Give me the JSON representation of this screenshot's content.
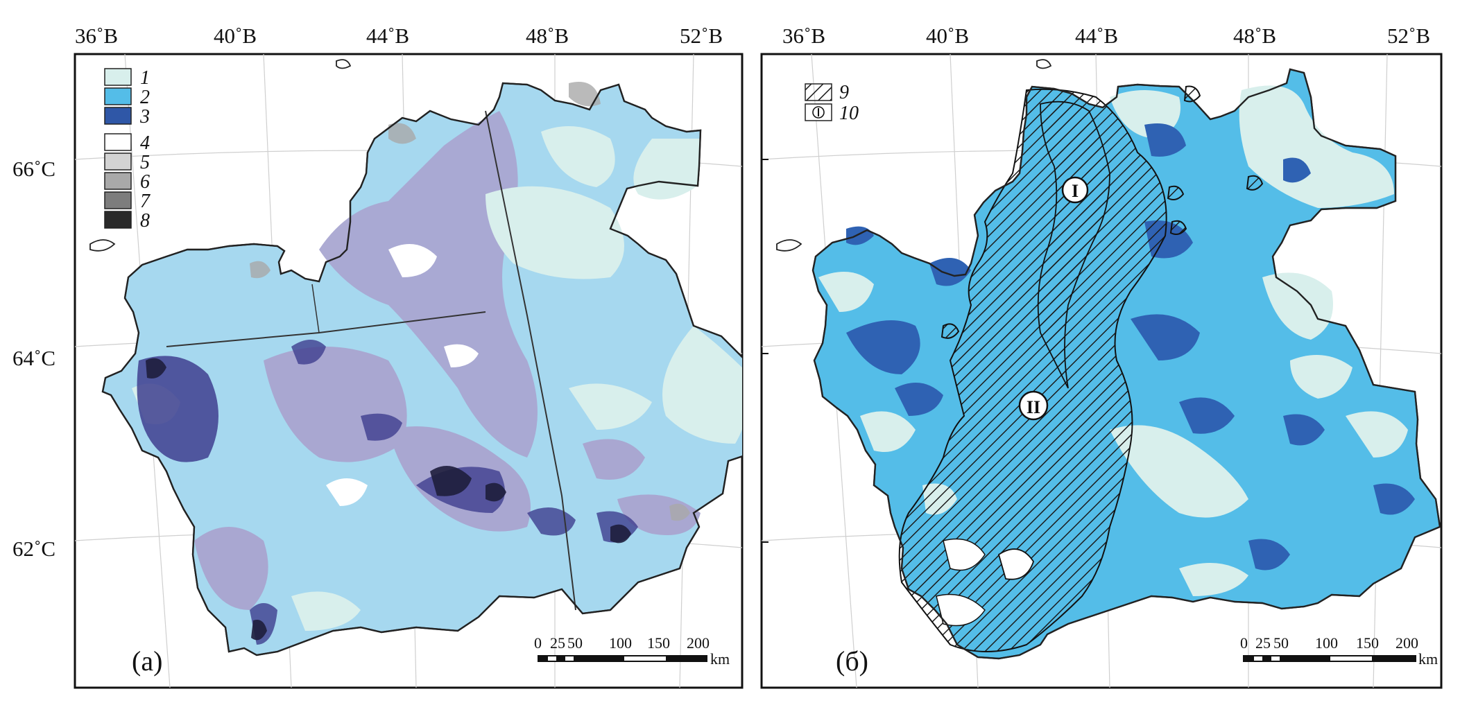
{
  "figure": {
    "panels": [
      {
        "id": "a",
        "label": "(а)",
        "top_ticks": [
          "36˚B",
          "40˚B",
          "44˚B",
          "48˚B",
          "52˚B"
        ],
        "left_ticks": [
          "66˚C",
          "64˚C",
          "62˚C"
        ],
        "legend": [
          {
            "num": "1",
            "color": "#d8efec"
          },
          {
            "num": "2",
            "color": "#9fd6ee"
          },
          {
            "num": "3",
            "color": "#2f57a7"
          },
          {
            "num": "4",
            "color": "#ffffff"
          },
          {
            "num": "5",
            "color": "#d3d3d3"
          },
          {
            "num": "6",
            "color": "#a9a9a9"
          },
          {
            "num": "7",
            "color": "#7d7d7d"
          },
          {
            "num": "8",
            "color": "#2a2a2a"
          }
        ],
        "scale": {
          "ticks": [
            "0",
            "25",
            "50",
            "100",
            "150",
            "200"
          ],
          "unit": "km"
        }
      },
      {
        "id": "b",
        "label": "(б)",
        "top_ticks": [
          "36˚B",
          "40˚B",
          "44˚B",
          "48˚B",
          "52˚B"
        ],
        "legend": [
          {
            "num": "9",
            "pattern": "hatch"
          },
          {
            "num": "10",
            "pattern": "circle-I"
          }
        ],
        "regions": [
          "I",
          "II"
        ],
        "scale": {
          "ticks": [
            "0",
            "25",
            "50",
            "100",
            "150",
            "200"
          ],
          "unit": "km"
        }
      }
    ],
    "colors": {
      "light": "#d8efec",
      "mid": "#54bde8",
      "dark": "#2f62b3",
      "lavender": "#a9a7d1",
      "sky": "#a6d8ef"
    }
  }
}
